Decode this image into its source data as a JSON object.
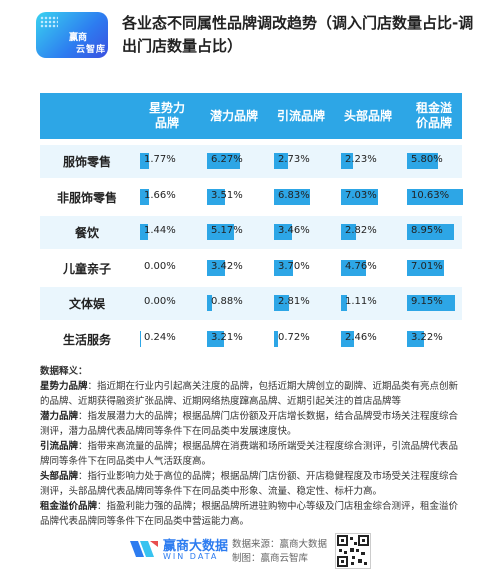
{
  "logo": {
    "line1": "赢商",
    "line2": "云智库"
  },
  "title": "各业态不同属性品牌调改趋势（调入门店数量占比-调出门店数量占比）",
  "chart_data": {
    "type": "table",
    "columns": [
      "星势力品牌",
      "潜力品牌",
      "引流品牌",
      "头部品牌",
      "租金溢价品牌"
    ],
    "rows": [
      {
        "label": "服饰零售",
        "values": [
          1.77,
          6.27,
          2.73,
          2.23,
          5.8
        ]
      },
      {
        "label": "非服饰零售",
        "values": [
          1.66,
          3.51,
          6.83,
          7.03,
          10.63
        ]
      },
      {
        "label": "餐饮",
        "values": [
          1.44,
          5.17,
          3.46,
          2.82,
          8.95
        ]
      },
      {
        "label": "儿童亲子",
        "values": [
          0.0,
          3.42,
          3.7,
          4.76,
          7.01
        ]
      },
      {
        "label": "文体娱",
        "values": [
          0.0,
          0.88,
          2.81,
          1.11,
          9.15
        ]
      },
      {
        "label": "生活服务",
        "values": [
          0.24,
          3.21,
          0.72,
          2.46,
          3.22
        ]
      }
    ],
    "value_labels": [
      [
        "1.77%",
        "6.27%",
        "2.73%",
        "2.23%",
        "5.80%"
      ],
      [
        "1.66%",
        "3.51%",
        "6.83%",
        "7.03%",
        "10.63%"
      ],
      [
        "1.44%",
        "5.17%",
        "3.46%",
        "2.82%",
        "8.95%"
      ],
      [
        "0.00%",
        "3.42%",
        "3.70%",
        "4.76%",
        "7.01%"
      ],
      [
        "0.00%",
        "0.88%",
        "2.81%",
        "1.11%",
        "9.15%"
      ],
      [
        "0.24%",
        "3.21%",
        "0.72%",
        "2.46%",
        "3.22%"
      ]
    ],
    "bar_color": "#2da6e6",
    "header_color": "#2da6e6",
    "alt_row_color": "#eaf6fd"
  },
  "definitions": {
    "heading": "数据释义：",
    "items": [
      {
        "term": "星势力品牌",
        "text": "：指近期在行业内引起高关注度的品牌，包括近期大牌创立的副牌、近期品类有亮点创新的品牌、近期获得融资扩张品牌、近期网络热度蹿高品牌、近期引起关注的首店品牌等"
      },
      {
        "term": "潜力品牌",
        "text": "：指发展潜力大的品牌；根据品牌门店份额及开店增长数据，结合品牌受市场关注程度综合测评，潜力品牌代表品牌同等条件下在同品类中发展速度快。"
      },
      {
        "term": "引流品牌",
        "text": "：指带来高流量的品牌；根据品牌在消费端和场所端受关注程度综合测评，引流品牌代表品牌同等条件下在同品类中人气活跃度高。"
      },
      {
        "term": "头部品牌",
        "text": "：指行业影响力处于高位的品牌；根据品牌门店份额、开店稳健程度及市场受关注程度综合测评，头部品牌代表品牌同等条件下在同品类中形象、流量、稳定性、标杆力高。"
      },
      {
        "term": "租金溢价品牌",
        "text": "：指盈利能力强的品牌；根据品牌所进驻购物中心等级及门店租金综合测评，租金溢价品牌代表品牌同等条件下在同品类中营运能力高。"
      }
    ]
  },
  "footer": {
    "brand_cn": "赢商大数据",
    "brand_en": "WIN DATA",
    "source_line1": "数据来源：赢商大数据",
    "source_line2": "制图：赢商云智库"
  }
}
